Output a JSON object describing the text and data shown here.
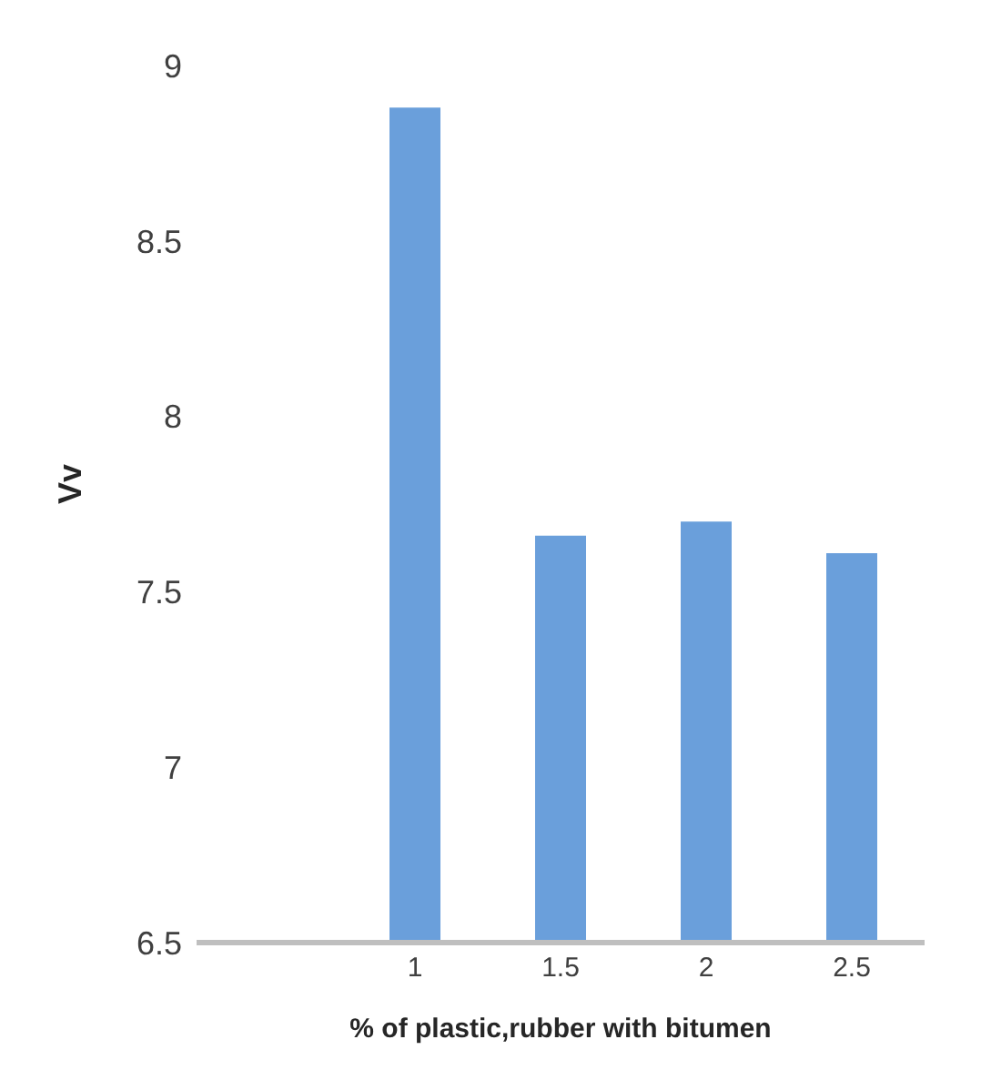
{
  "chart_data": {
    "type": "bar",
    "xlabel": "% of plastic,rubber with bitumen",
    "ylabel": "Vv",
    "categories": [
      null,
      "1",
      "1.5",
      "2",
      "2.5"
    ],
    "values": [
      null,
      8.88,
      7.66,
      7.7,
      7.61
    ],
    "color": "#6a9fdb",
    "ylim": [
      6.5,
      9
    ],
    "yticks": [
      6.5,
      7,
      7.5,
      8,
      8.5,
      9
    ],
    "grid": false,
    "legend": false
  }
}
